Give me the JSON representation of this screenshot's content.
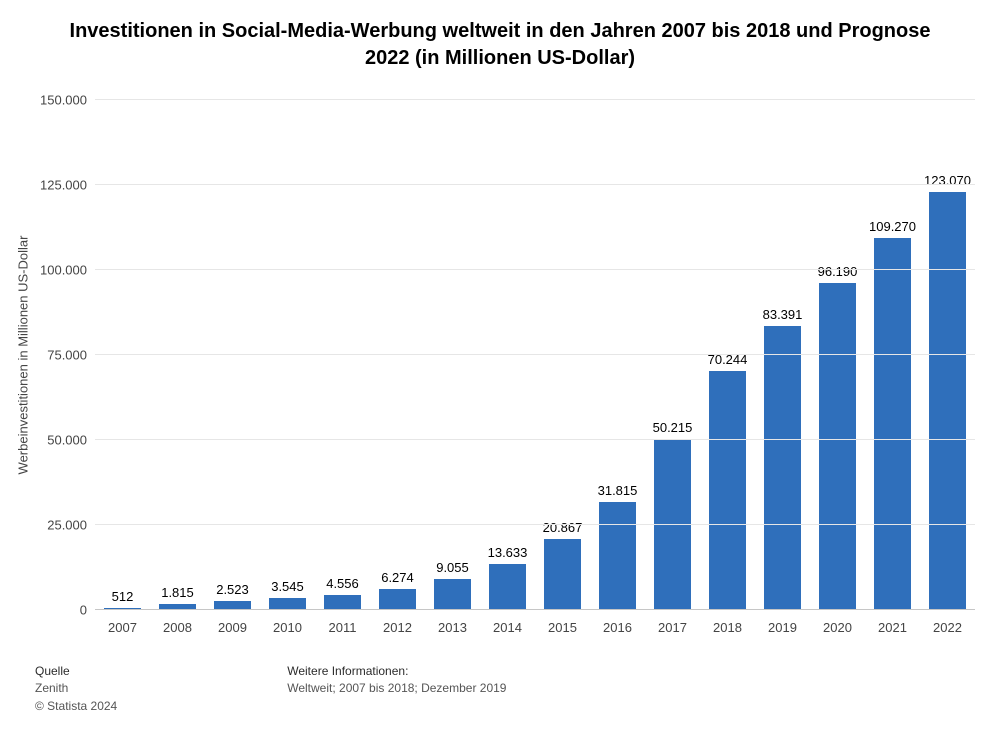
{
  "title": "Investitionen in Social-Media-Werbung weltweit in den Jahren 2007 bis 2018 und Prognose 2022 (in Millionen US-Dollar)",
  "chart": {
    "type": "bar",
    "y_axis_title": "Werbeinvestitionen in Millionen US-Dollar",
    "background_color": "#ffffff",
    "grid_color": "#e6e6e6",
    "baseline_color": "#c6c6c6",
    "bar_color": "#2f6fbb",
    "ylim_min": 0,
    "ylim_max": 150000,
    "y_ticks": [
      {
        "v": 0,
        "label": "0"
      },
      {
        "v": 25000,
        "label": "25.000"
      },
      {
        "v": 50000,
        "label": "50.000"
      },
      {
        "v": 75000,
        "label": "75.000"
      },
      {
        "v": 100000,
        "label": "100.000"
      },
      {
        "v": 125000,
        "label": "125.000"
      },
      {
        "v": 150000,
        "label": "150.000"
      }
    ],
    "title_fontsize": 20,
    "label_fontsize": 13,
    "tick_fontsize": 13,
    "bar_width_ratio": 0.68,
    "data": [
      {
        "year": "2007",
        "value": 512,
        "label": "512"
      },
      {
        "year": "2008",
        "value": 1815,
        "label": "1.815"
      },
      {
        "year": "2009",
        "value": 2523,
        "label": "2.523"
      },
      {
        "year": "2010",
        "value": 3545,
        "label": "3.545"
      },
      {
        "year": "2011",
        "value": 4556,
        "label": "4.556"
      },
      {
        "year": "2012",
        "value": 6274,
        "label": "6.274"
      },
      {
        "year": "2013",
        "value": 9055,
        "label": "9.055"
      },
      {
        "year": "2014",
        "value": 13633,
        "label": "13.633"
      },
      {
        "year": "2015",
        "value": 20867,
        "label": "20.867"
      },
      {
        "year": "2016",
        "value": 31815,
        "label": "31.815"
      },
      {
        "year": "2017",
        "value": 50215,
        "label": "50.215"
      },
      {
        "year": "2018",
        "value": 70244,
        "label": "70.244"
      },
      {
        "year": "2019",
        "value": 83391,
        "label": "83.391"
      },
      {
        "year": "2020",
        "value": 96190,
        "label": "96.190"
      },
      {
        "year": "2021",
        "value": 109270,
        "label": "109.270"
      },
      {
        "year": "2022",
        "value": 123070,
        "label": "123.070"
      }
    ]
  },
  "footer": {
    "source_heading": "Quelle",
    "source_line1": "Zenith",
    "source_line2": "© Statista 2024",
    "info_heading": "Weitere Informationen:",
    "info_line1": "Weltweit; 2007 bis 2018; Dezember 2019"
  }
}
